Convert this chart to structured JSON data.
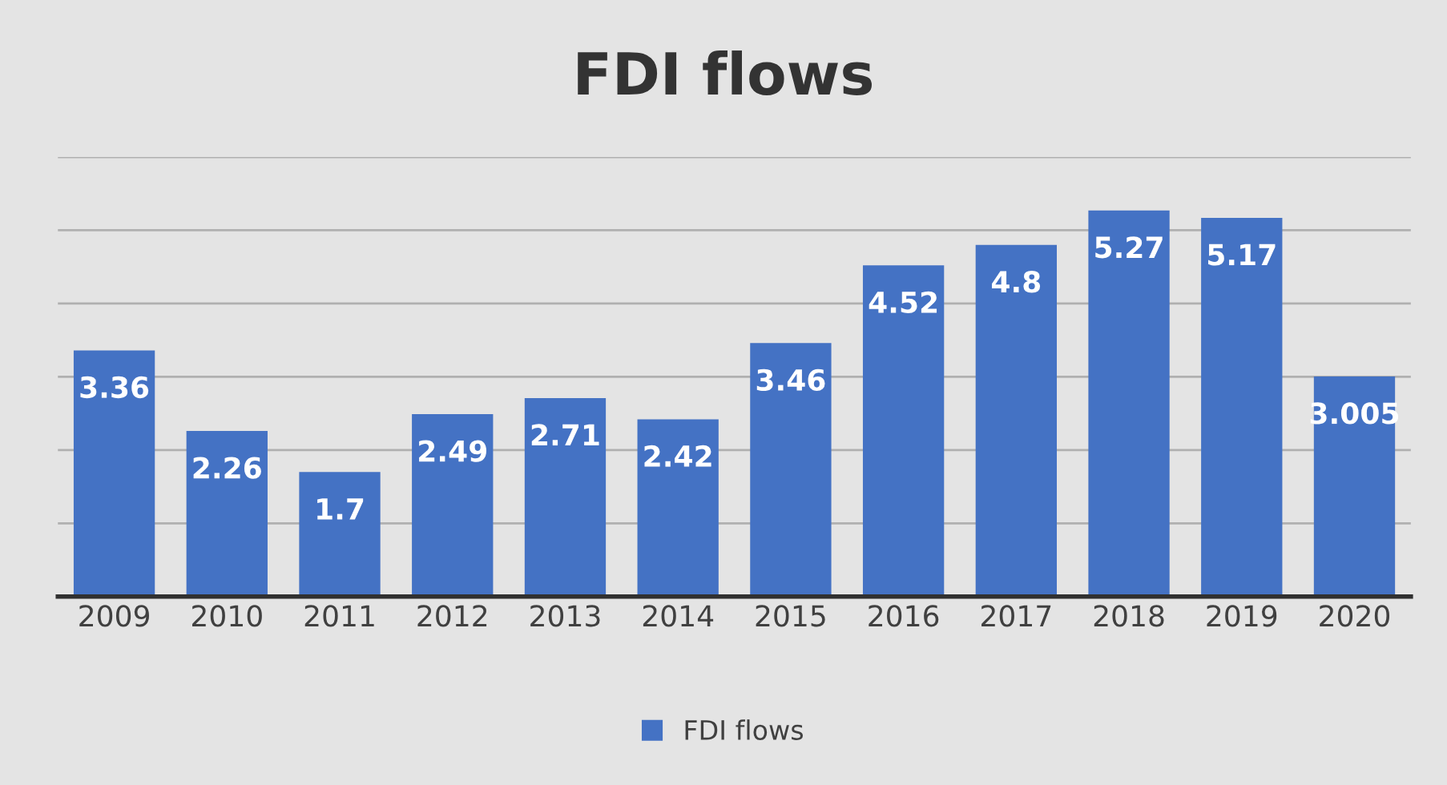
{
  "chart_data": {
    "type": "bar",
    "title": "FDI flows",
    "categories": [
      "2009",
      "2010",
      "2011",
      "2012",
      "2013",
      "2014",
      "2015",
      "2016",
      "2017",
      "2018",
      "2019",
      "2020"
    ],
    "series": [
      {
        "name": "FDI flows",
        "color": "#4472c4",
        "values": [
          3.36,
          2.26,
          1.7,
          2.49,
          2.71,
          2.42,
          3.46,
          4.52,
          4.8,
          5.27,
          5.17,
          3.005
        ]
      }
    ],
    "data_labels": true,
    "ylim": [
      0,
      6
    ],
    "yticks": [
      {
        "value": 0,
        "label": null
      },
      {
        "value": 1,
        "label": null
      },
      {
        "value": 2,
        "label": null
      },
      {
        "value": 3,
        "label": null
      },
      {
        "value": 4,
        "label": null
      },
      {
        "value": 5,
        "label": null
      },
      {
        "value": 6,
        "label": null
      }
    ],
    "tick_labels": "x",
    "grid": "y",
    "legend": "bottom"
  }
}
